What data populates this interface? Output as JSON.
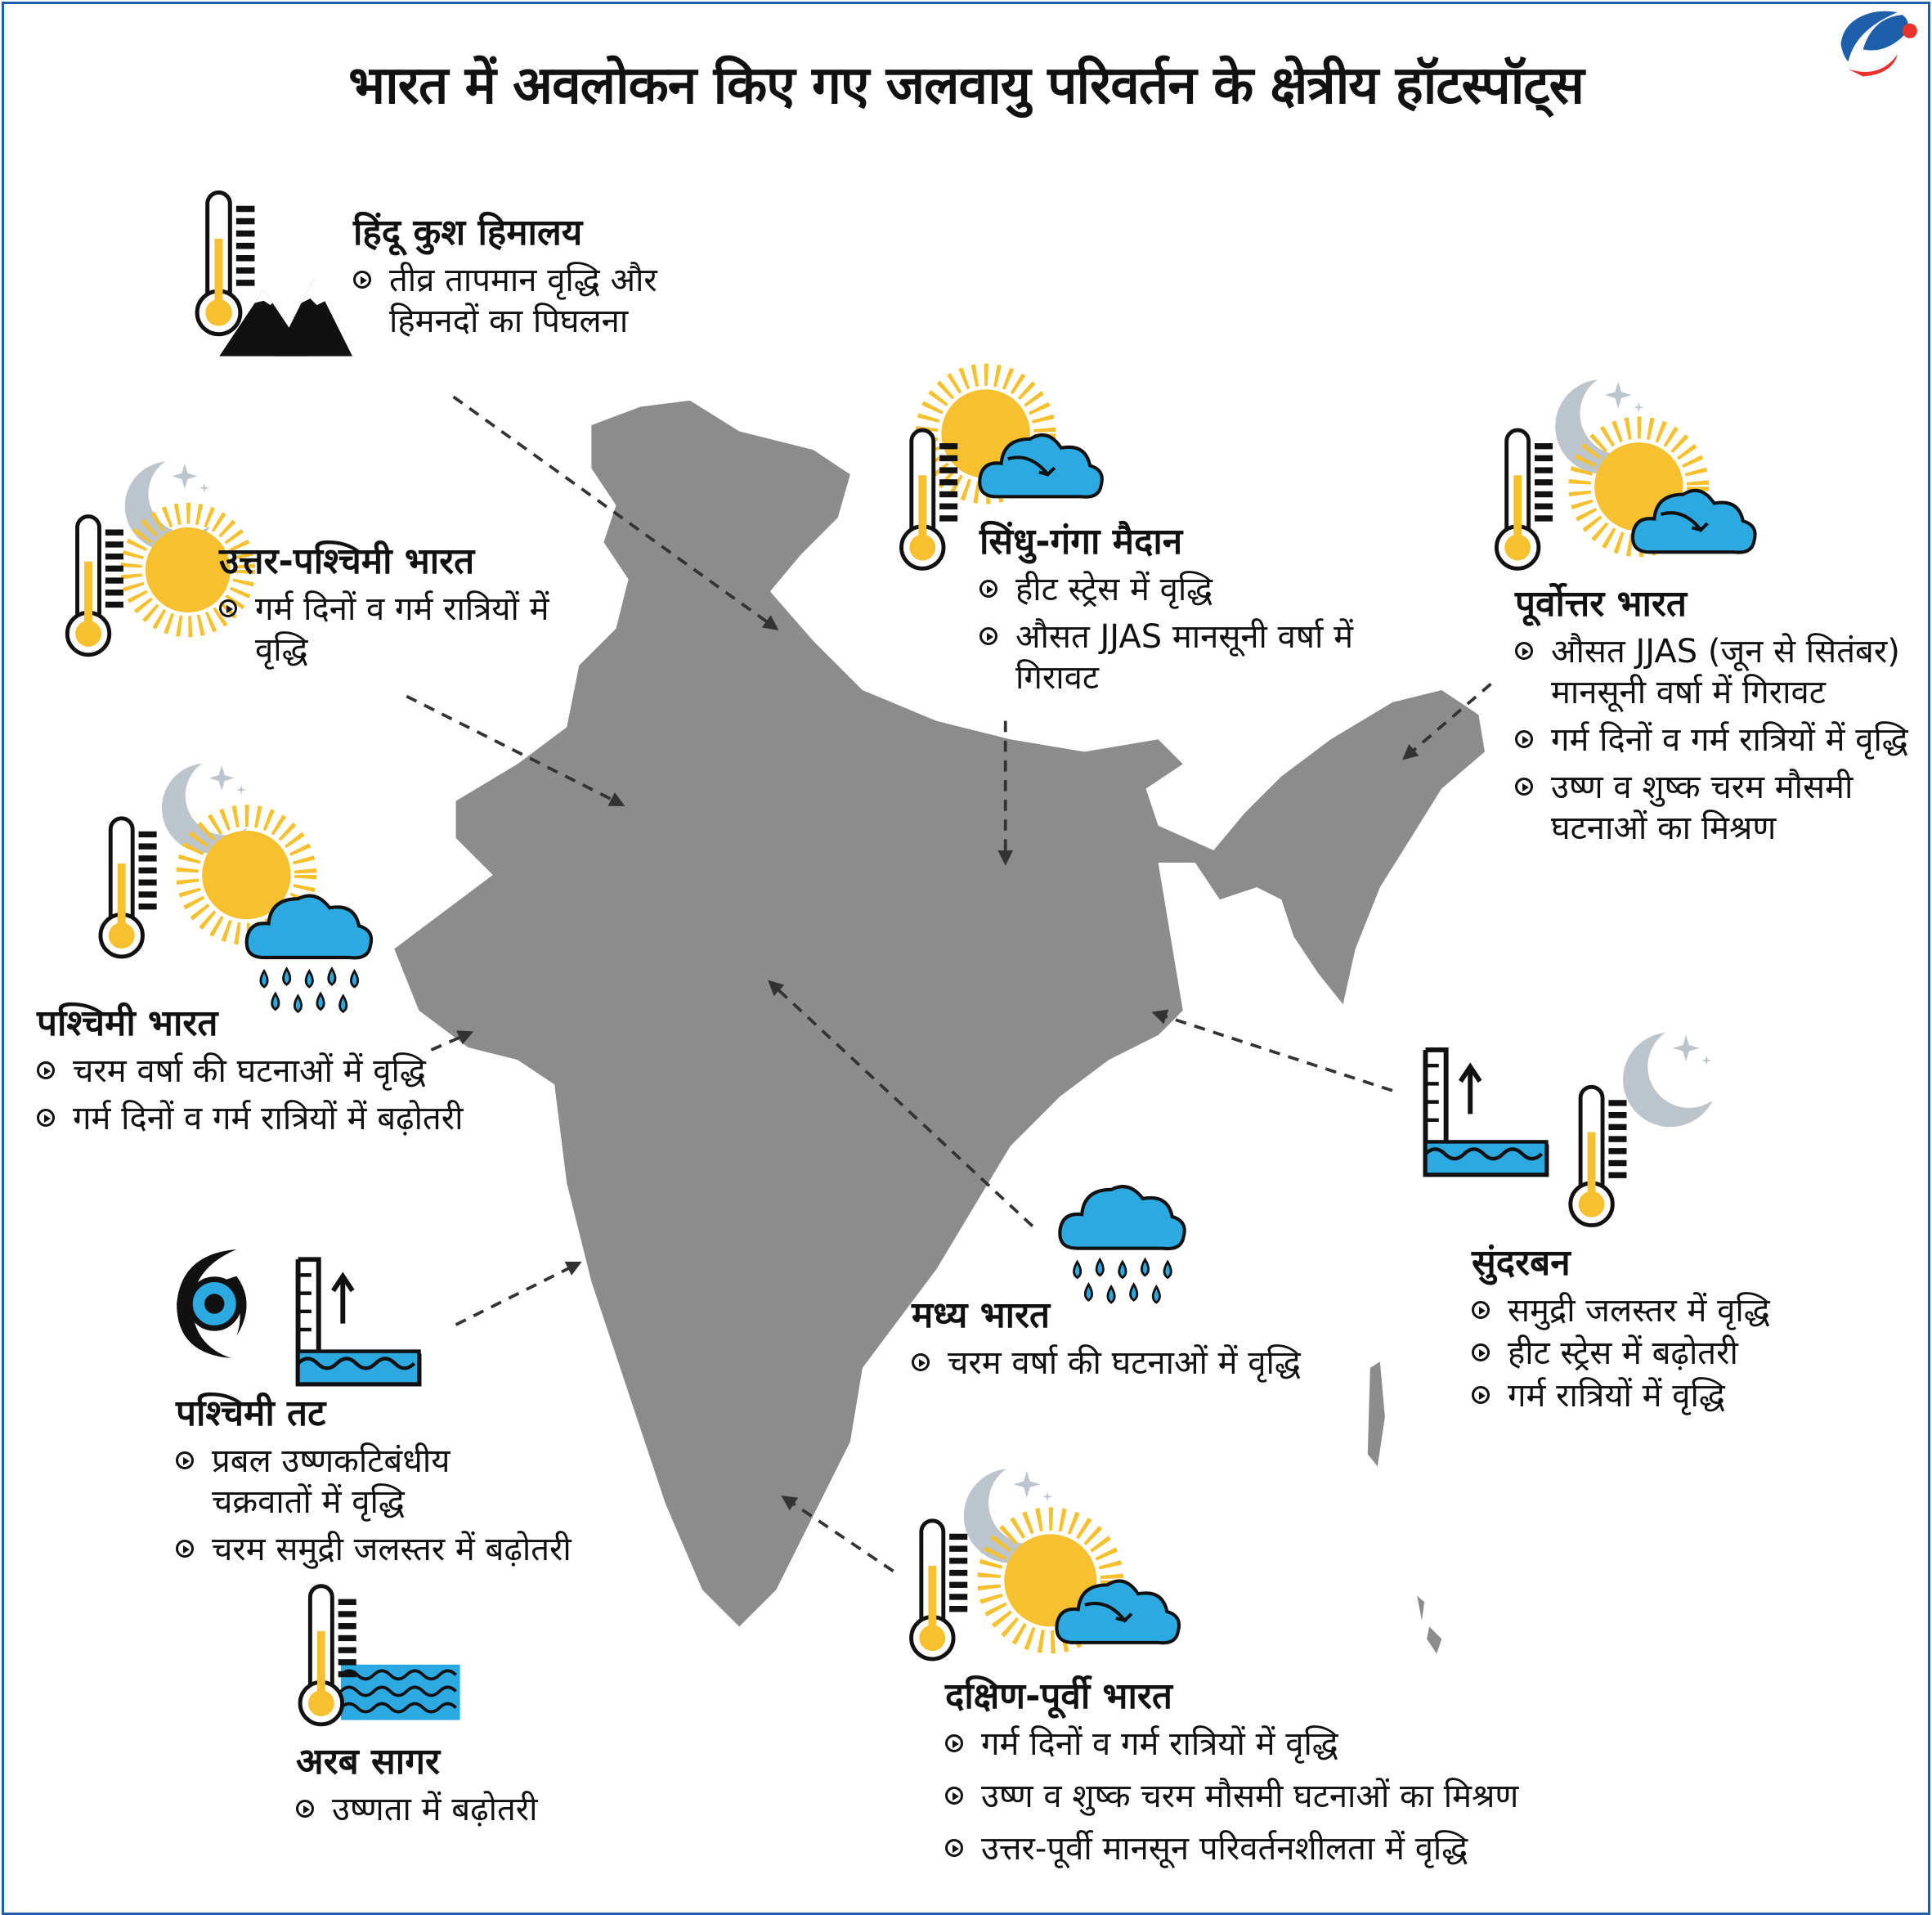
{
  "title": "भारत में अवलोकन किए गए जलवायु परिवर्तन के क्षेत्रीय हॉटस्पॉट्स",
  "colors": {
    "frame": "#1d5fa8",
    "map": "#8c8c8c",
    "sun": "#F6C02E",
    "water": "#2BA9E0",
    "moon": "#BCC5CC",
    "logo_blue": "#1d5fa8",
    "logo_red": "#e8322b"
  },
  "regions": [
    {
      "title": "हिंदू कुश हिमालय",
      "points": [
        "तीव्र तापमान वृद्धि और हिमनदों का पिघलना"
      ],
      "icons": [
        "thermometer",
        "mountain"
      ]
    },
    {
      "title": "उत्तर-पश्चिमी भारत",
      "points": [
        "गर्म दिनों व गर्म रात्रियों में वृद्धि"
      ],
      "icons": [
        "thermometer",
        "moon",
        "sun"
      ]
    },
    {
      "title": "पश्चिमी भारत",
      "points": [
        "चरम वर्षा की घटनाओं में वृद्धि",
        "गर्म दिनों व गर्म रात्रियों में बढ़ोतरी"
      ],
      "icons": [
        "thermometer",
        "moon",
        "sun",
        "rain-cloud"
      ]
    },
    {
      "title": "पश्चिमी तट",
      "points": [
        "प्रबल उष्णकटिबंधीय चक्रवातों में वृद्धि",
        "चरम समुद्री जलस्तर में बढ़ोतरी"
      ],
      "icons": [
        "cyclone",
        "sea-level-gauge"
      ]
    },
    {
      "title": "अरब सागर",
      "points": [
        "उष्णता में बढ़ोतरी"
      ],
      "icons": [
        "thermometer",
        "waves"
      ]
    },
    {
      "title": "सिंधु-गंगा मैदान",
      "points": [
        "हीट स्ट्रेस में वृद्धि",
        "औसत JJAS मानसूनी वर्षा में गिरावट"
      ],
      "icons": [
        "thermometer",
        "sun",
        "cloud"
      ]
    },
    {
      "title": "पूर्वोत्तर भारत",
      "points": [
        "औसत JJAS (जून से सितंबर) मानसूनी वर्षा में गिरावट",
        "गर्म दिनों व गर्म रात्रियों में वृद्धि",
        "उष्ण व शुष्क चरम मौसमी घटनाओं का मिश्रण"
      ],
      "icons": [
        "thermometer",
        "moon",
        "sun",
        "cloud"
      ]
    },
    {
      "title": "सुंदरबन",
      "points": [
        "समुद्री जलस्तर में वृद्धि",
        "हीट स्ट्रेस में बढ़ोतरी",
        "गर्म रात्रियों में वृद्धि"
      ],
      "icons": [
        "sea-level-gauge",
        "thermometer",
        "moon"
      ]
    },
    {
      "title": "मध्य भारत",
      "points": [
        "चरम वर्षा की घटनाओं में वृद्धि"
      ],
      "icons": [
        "rain-cloud"
      ]
    },
    {
      "title": "दक्षिण-पूर्वी भारत",
      "points": [
        "गर्म दिनों व गर्म रात्रियों में वृद्धि",
        "उष्ण व शुष्क चरम मौसमी घटनाओं का मिश्रण",
        "उत्तर-पूर्वी मानसून परिवर्तनशीलता में वृद्धि"
      ],
      "icons": [
        "thermometer",
        "moon",
        "sun",
        "cloud"
      ]
    }
  ]
}
